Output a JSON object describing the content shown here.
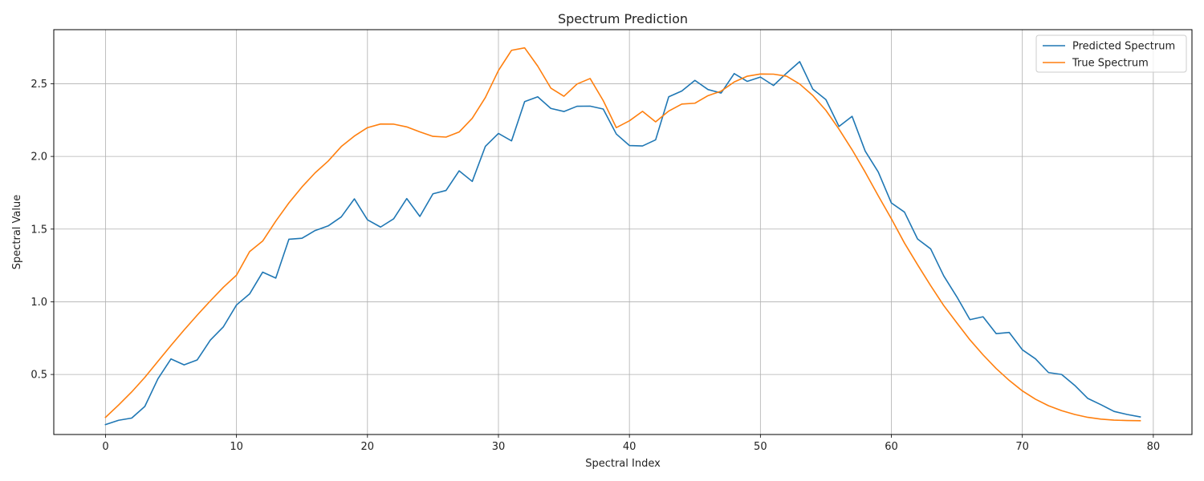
{
  "chart_data": {
    "type": "line",
    "title": "Spectrum Prediction",
    "xlabel": "Spectral Index",
    "ylabel": "Spectral Value",
    "xlim": [
      -3.95,
      82.95
    ],
    "ylim": [
      0.087,
      2.872
    ],
    "xticks": [
      0,
      10,
      20,
      30,
      40,
      50,
      60,
      70,
      80
    ],
    "yticks": [
      0.5,
      1.0,
      1.5,
      2.0,
      2.5
    ],
    "xtick_labels": [
      "0",
      "10",
      "20",
      "30",
      "40",
      "50",
      "60",
      "70",
      "80"
    ],
    "ytick_labels": [
      "0.5",
      "1.0",
      "1.5",
      "2.0",
      "2.5"
    ],
    "grid": true,
    "legend_position": "top-right",
    "series": [
      {
        "name": "Predicted Spectrum",
        "color": "#1f77b4",
        "x": [
          0,
          1,
          2,
          3,
          4,
          5,
          6,
          7,
          8,
          9,
          10,
          11,
          12,
          13,
          14,
          15,
          16,
          17,
          18,
          19,
          20,
          21,
          22,
          23,
          24,
          25,
          26,
          27,
          28,
          29,
          30,
          31,
          32,
          33,
          34,
          35,
          36,
          37,
          38,
          39,
          40,
          41,
          42,
          43,
          44,
          45,
          46,
          47,
          48,
          49,
          50,
          51,
          52,
          53,
          54,
          55,
          56,
          57,
          58,
          59,
          60,
          61,
          62,
          63,
          64,
          65,
          66,
          67,
          68,
          69,
          70,
          71,
          72,
          73,
          74,
          75,
          76,
          77,
          78,
          79
        ],
        "values": [
          0.155,
          0.185,
          0.2,
          0.28,
          0.47,
          0.607,
          0.566,
          0.6,
          0.736,
          0.828,
          0.978,
          1.054,
          1.204,
          1.163,
          1.43,
          1.437,
          1.49,
          1.522,
          1.584,
          1.708,
          1.564,
          1.514,
          1.571,
          1.71,
          1.587,
          1.743,
          1.766,
          1.901,
          1.828,
          2.069,
          2.158,
          2.107,
          2.377,
          2.41,
          2.33,
          2.309,
          2.345,
          2.346,
          2.326,
          2.154,
          2.075,
          2.072,
          2.114,
          2.41,
          2.45,
          2.523,
          2.46,
          2.436,
          2.57,
          2.516,
          2.546,
          2.488,
          2.573,
          2.652,
          2.463,
          2.391,
          2.206,
          2.276,
          2.037,
          1.893,
          1.68,
          1.617,
          1.432,
          1.364,
          1.178,
          1.034,
          0.877,
          0.897,
          0.781,
          0.789,
          0.67,
          0.608,
          0.513,
          0.5,
          0.425,
          0.335,
          0.292,
          0.246,
          0.225,
          0.208
        ]
      },
      {
        "name": "True Spectrum",
        "color": "#ff7f0e",
        "x": [
          0,
          1,
          2,
          3,
          4,
          5,
          6,
          7,
          8,
          9,
          10,
          11,
          12,
          13,
          14,
          15,
          16,
          17,
          18,
          19,
          20,
          21,
          22,
          23,
          24,
          25,
          26,
          27,
          28,
          29,
          30,
          31,
          32,
          33,
          34,
          35,
          36,
          37,
          38,
          39,
          40,
          41,
          42,
          43,
          44,
          45,
          46,
          47,
          48,
          49,
          50,
          51,
          52,
          53,
          54,
          55,
          56,
          57,
          58,
          59,
          60,
          61,
          62,
          63,
          64,
          65,
          66,
          67,
          68,
          69,
          70,
          71,
          72,
          73,
          74,
          75,
          76,
          77,
          78,
          79
        ],
        "values": [
          0.205,
          0.29,
          0.38,
          0.48,
          0.59,
          0.7,
          0.806,
          0.908,
          1.006,
          1.1,
          1.183,
          1.345,
          1.418,
          1.555,
          1.68,
          1.79,
          1.887,
          1.968,
          2.068,
          2.14,
          2.198,
          2.223,
          2.222,
          2.203,
          2.169,
          2.138,
          2.133,
          2.168,
          2.262,
          2.405,
          2.591,
          2.73,
          2.747,
          2.621,
          2.47,
          2.414,
          2.498,
          2.536,
          2.384,
          2.198,
          2.245,
          2.31,
          2.238,
          2.312,
          2.36,
          2.366,
          2.418,
          2.449,
          2.512,
          2.552,
          2.567,
          2.566,
          2.552,
          2.498,
          2.419,
          2.317,
          2.188,
          2.046,
          1.892,
          1.729,
          1.571,
          1.404,
          1.255,
          1.111,
          0.974,
          0.855,
          0.738,
          0.635,
          0.541,
          0.459,
          0.387,
          0.33,
          0.285,
          0.251,
          0.225,
          0.205,
          0.193,
          0.186,
          0.183,
          0.182
        ]
      }
    ]
  }
}
